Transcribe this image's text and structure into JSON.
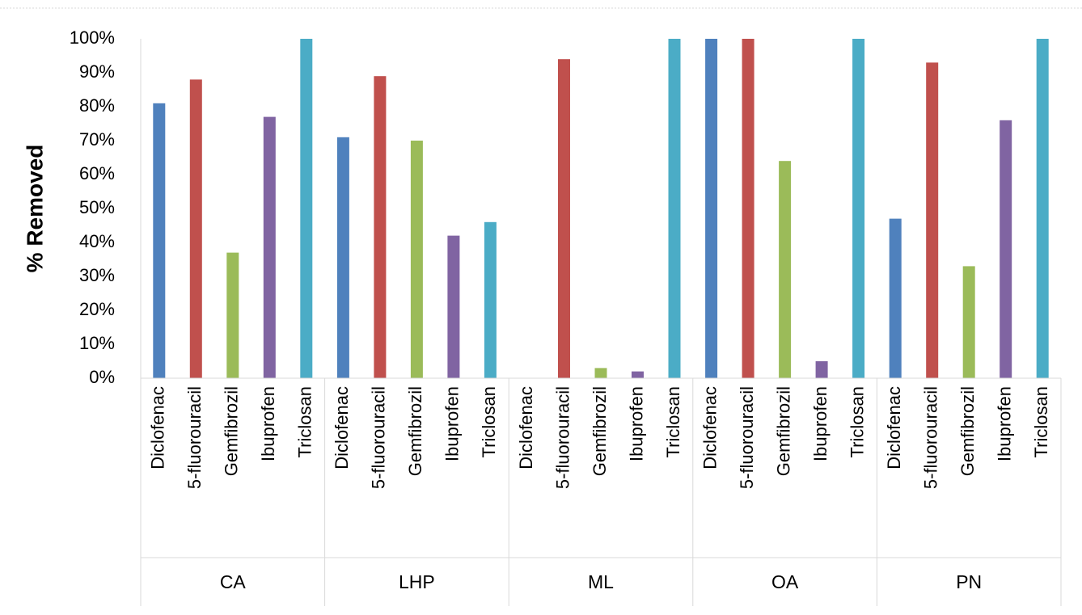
{
  "chart_data": {
    "type": "bar",
    "title": "",
    "xlabel": "",
    "ylabel": "% Removed",
    "ylim": [
      0,
      100
    ],
    "yticks": [
      "0%",
      "10%",
      "20%",
      "30%",
      "40%",
      "50%",
      "60%",
      "70%",
      "80%",
      "90%",
      "100%"
    ],
    "grid": false,
    "legend": "none",
    "groups": [
      "CA",
      "LHP",
      "ML",
      "OA",
      "PN"
    ],
    "categories": [
      "Diclofenac",
      "5-fluorouracil",
      "Gemfibrozil",
      "Ibuprofen",
      "Triclosan"
    ],
    "colors": [
      "#4F81BD",
      "#C0504D",
      "#9BBB59",
      "#8064A2",
      "#4BACC6"
    ],
    "values": [
      [
        81,
        88,
        37,
        77,
        100
      ],
      [
        71,
        89,
        70,
        42,
        46
      ],
      [
        0,
        94,
        3,
        2,
        100
      ],
      [
        100,
        100,
        64,
        5,
        100
      ],
      [
        47,
        93,
        33,
        76,
        100
      ]
    ]
  }
}
